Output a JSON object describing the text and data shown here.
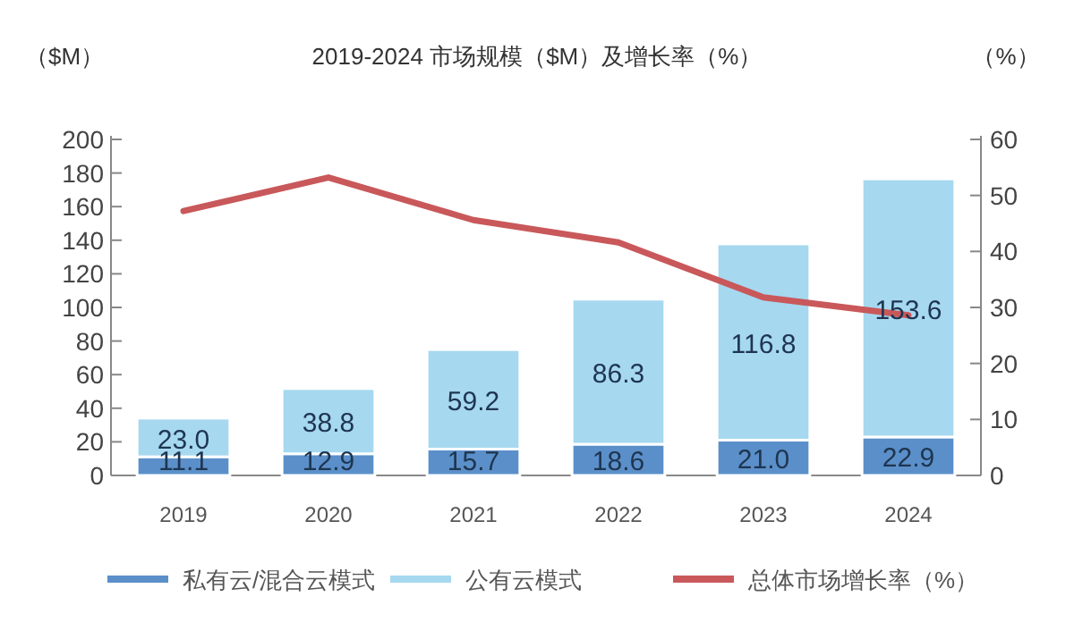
{
  "chart_data": {
    "type": "bar",
    "title": "2019-2024 市场规模（$M）及增长率（%）",
    "ylabel": "（$M）",
    "y2label": "（%）",
    "categories": [
      "2019",
      "2020",
      "2021",
      "2022",
      "2023",
      "2024"
    ],
    "series": [
      {
        "name": "私有云/混合云模式",
        "color": "#5b8fc9",
        "values": [
          11.1,
          12.9,
          15.7,
          18.6,
          21.0,
          22.9
        ],
        "value_labels": [
          "11.1",
          "12.9",
          "15.7",
          "18.6",
          "21.0",
          "22.9"
        ]
      },
      {
        "name": "公有云模式",
        "color": "#a6d8f0",
        "values": [
          23.0,
          38.8,
          59.2,
          86.3,
          116.8,
          153.6
        ],
        "value_labels": [
          "23.0",
          "38.8",
          "59.2",
          "86.3",
          "116.8",
          "153.6"
        ]
      },
      {
        "name": "总体市场增长率（%）",
        "type": "line",
        "axis": "y2",
        "color": "#c9585a",
        "values": [
          47.2,
          53.2,
          45.6,
          41.6,
          31.8,
          28.6
        ]
      }
    ],
    "stacked": true,
    "legend": "bottom",
    "ylim": [
      0,
      200
    ],
    "yticks": [
      0,
      20,
      40,
      60,
      80,
      100,
      120,
      140,
      160,
      180,
      200
    ],
    "y2lim": [
      0,
      60
    ],
    "y2ticks": [
      0,
      10,
      20,
      30,
      40,
      50,
      60
    ]
  }
}
